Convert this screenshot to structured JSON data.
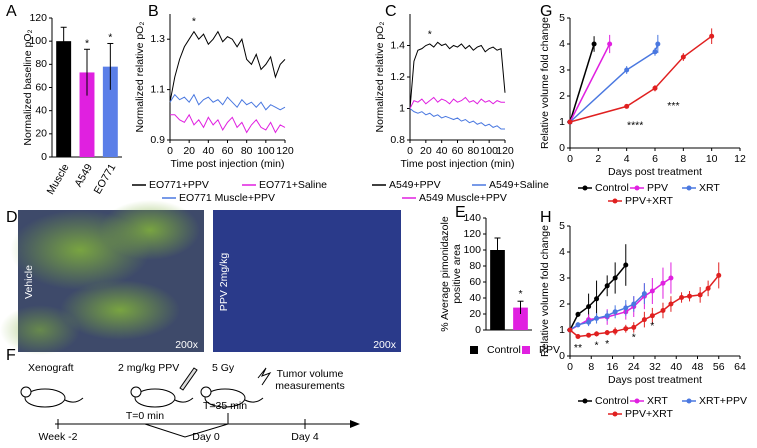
{
  "chart_data": [
    {
      "type": "bar",
      "panel": "A",
      "ylabel": "Normalized baseline pO₂",
      "categories": [
        "Muscle",
        "A549",
        "EO771"
      ],
      "values": [
        100,
        73,
        78
      ],
      "errors": [
        12,
        20,
        20
      ],
      "colors": [
        "#000000",
        "#e020e0",
        "#5b7fe8"
      ],
      "ylim": [
        0,
        120
      ],
      "yticks": [
        0,
        20,
        40,
        60,
        80,
        100,
        120
      ],
      "annotations": [
        {
          "text": "*",
          "index": 1,
          "y": 98
        },
        {
          "text": "*",
          "index": 2,
          "y": 103
        }
      ]
    },
    {
      "type": "line",
      "panel": "B",
      "ylabel": "Normalized relative pO₂",
      "xlabel": "Time post injection (min)",
      "x": [
        0,
        5,
        10,
        15,
        20,
        25,
        30,
        35,
        40,
        45,
        50,
        55,
        60,
        65,
        70,
        75,
        80,
        85,
        90,
        95,
        100,
        105,
        110,
        115,
        120
      ],
      "series": [
        {
          "name": "EO771+PPV",
          "color": "#000000",
          "values": [
            1.05,
            1.15,
            1.22,
            1.27,
            1.3,
            1.33,
            1.3,
            1.32,
            1.28,
            1.3,
            1.33,
            1.29,
            1.31,
            1.3,
            1.27,
            1.3,
            1.22,
            1.2,
            1.24,
            1.18,
            1.2,
            1.23,
            1.15,
            1.2,
            1.22
          ]
        },
        {
          "name": "EO771+Saline",
          "color": "#e020e0",
          "values": [
            1.0,
            1.0,
            0.98,
            0.97,
            1.0,
            0.96,
            0.98,
            0.95,
            0.99,
            0.96,
            0.98,
            0.94,
            0.97,
            0.99,
            0.95,
            0.97,
            0.93,
            0.96,
            0.98,
            0.95,
            0.94,
            0.97,
            0.93,
            0.96,
            0.95
          ]
        },
        {
          "name": "EO771 Muscle+PPV",
          "color": "#4a78e0",
          "values": [
            1.05,
            1.08,
            1.06,
            1.07,
            1.05,
            1.08,
            1.04,
            1.06,
            1.07,
            1.05,
            1.06,
            1.04,
            1.07,
            1.05,
            1.03,
            1.06,
            1.04,
            1.05,
            1.03,
            1.05,
            1.02,
            1.04,
            1.03,
            1.02,
            1.03
          ]
        }
      ],
      "xlim": [
        0,
        120
      ],
      "xticks": [
        0,
        20,
        40,
        60,
        80,
        100,
        120
      ],
      "ylim": [
        0.9,
        1.4
      ],
      "yticks": [
        0.9,
        1.1,
        1.3
      ],
      "annotations": [
        {
          "text": "*",
          "x": 25,
          "y": 1.37
        }
      ]
    },
    {
      "type": "line",
      "panel": "C",
      "ylabel": "Normalized relative pO₂",
      "xlabel": "Time post injection (min)",
      "x": [
        0,
        5,
        10,
        15,
        20,
        25,
        30,
        35,
        40,
        45,
        50,
        55,
        60,
        65,
        70,
        75,
        80,
        85,
        90,
        95,
        100,
        105,
        110,
        115,
        120
      ],
      "series": [
        {
          "name": "A549+PPV",
          "color": "#000000",
          "values": [
            1.0,
            1.3,
            1.37,
            1.38,
            1.4,
            1.41,
            1.39,
            1.42,
            1.4,
            1.41,
            1.38,
            1.4,
            1.39,
            1.41,
            1.38,
            1.4,
            1.37,
            1.39,
            1.4,
            1.36,
            1.38,
            1.39,
            1.37,
            1.38,
            1.1
          ]
        },
        {
          "name": "A549+Saline",
          "color": "#4a78e0",
          "values": [
            1.0,
            0.98,
            0.97,
            0.98,
            0.96,
            0.97,
            0.95,
            0.96,
            0.94,
            0.95,
            0.94,
            0.93,
            0.94,
            0.92,
            0.93,
            0.91,
            0.92,
            0.9,
            0.91,
            0.89,
            0.9,
            0.88,
            0.89,
            0.87,
            0.87
          ]
        },
        {
          "name": "A549 Muscle+PPV",
          "color": "#e020e0",
          "values": [
            1.0,
            1.05,
            1.04,
            1.06,
            1.03,
            1.05,
            1.07,
            1.04,
            1.06,
            1.05,
            1.03,
            1.06,
            1.04,
            1.05,
            1.07,
            1.04,
            1.05,
            1.03,
            1.06,
            1.04,
            1.05,
            1.03,
            1.05,
            1.04,
            1.04
          ]
        }
      ],
      "xlim": [
        0,
        120
      ],
      "xticks": [
        0,
        20,
        40,
        60,
        80,
        100,
        120
      ],
      "ylim": [
        0.8,
        1.6
      ],
      "yticks": [
        0.8,
        1,
        1.2,
        1.4
      ],
      "annotations": [
        {
          "text": "*",
          "x": 25,
          "y": 1.47
        }
      ]
    },
    {
      "type": "bar",
      "panel": "E",
      "ylabel": [
        "% Average pimonidazole",
        "positive area"
      ],
      "series": [
        {
          "name": "Control",
          "color": "#000000",
          "values": [
            100
          ],
          "errors": [
            15
          ]
        },
        {
          "name": "PPV",
          "color": "#e020e0",
          "values": [
            28
          ],
          "errors": [
            8
          ]
        }
      ],
      "ylim": [
        0,
        140
      ],
      "yticks": [
        0,
        20,
        40,
        60,
        80,
        100,
        120,
        140
      ],
      "annotations": [
        {
          "text": "*",
          "index": 1,
          "y": 45
        }
      ]
    },
    {
      "type": "line",
      "panel": "G",
      "ylabel": "Relative volume fold change",
      "xlabel": "Days post treatment",
      "series": [
        {
          "name": "Control",
          "color": "#000000",
          "x": [
            0,
            1.7
          ],
          "values": [
            1,
            4
          ],
          "errors": [
            0,
            0.3
          ]
        },
        {
          "name": "PPV",
          "color": "#e020e0",
          "x": [
            0,
            2.8
          ],
          "values": [
            1,
            4
          ],
          "errors": [
            0,
            0.35
          ]
        },
        {
          "name": "XRT",
          "color": "#4a78e0",
          "x": [
            0,
            4,
            6,
            6.2
          ],
          "values": [
            1,
            3,
            3.7,
            4
          ],
          "errors": [
            0,
            0.15,
            0.15,
            0.35
          ]
        },
        {
          "name": "PPV+XRT",
          "color": "#e02020",
          "x": [
            0,
            4,
            6,
            8,
            10
          ],
          "values": [
            1,
            1.6,
            2.3,
            3.5,
            4.3
          ],
          "errors": [
            0,
            0.08,
            0.12,
            0.15,
            0.3
          ]
        }
      ],
      "xlim": [
        0,
        12
      ],
      "xticks": [
        0,
        2,
        4,
        6,
        8,
        10,
        12
      ],
      "ylim": [
        0,
        5
      ],
      "yticks": [
        0,
        1,
        2,
        3,
        4,
        5
      ],
      "annotations": [
        {
          "text": "****",
          "x": 4.6,
          "y": 0.85
        },
        {
          "text": "***",
          "x": 7.3,
          "y": 1.6
        }
      ]
    },
    {
      "type": "line",
      "panel": "H",
      "ylabel": "Relative volume fold change",
      "xlabel": "Days post treatment",
      "series": [
        {
          "name": "Control",
          "color": "#000000",
          "x": [
            0,
            3,
            7,
            10,
            14,
            17,
            21
          ],
          "values": [
            1,
            1.6,
            1.9,
            2.2,
            2.7,
            3.0,
            3.5
          ],
          "errors": [
            0,
            0.1,
            0.5,
            0.7,
            0.4,
            0.6,
            0.8
          ]
        },
        {
          "name": "XRT",
          "color": "#e020e0",
          "x": [
            0,
            7,
            14,
            21,
            24,
            28,
            31,
            35,
            38
          ],
          "values": [
            1,
            1.4,
            1.5,
            1.7,
            1.9,
            2.3,
            2.5,
            2.8,
            3.0
          ],
          "errors": [
            0,
            0.2,
            0.3,
            0.3,
            0.4,
            0.5,
            0.5,
            0.6,
            0.6
          ]
        },
        {
          "name": "XRT+PPV",
          "color": "#4a78e0",
          "x": [
            0,
            3,
            7,
            10,
            14,
            17,
            21,
            24,
            28
          ],
          "values": [
            1,
            1.2,
            1.3,
            1.45,
            1.55,
            1.7,
            1.85,
            2.0,
            2.4
          ],
          "errors": [
            0,
            0.1,
            0.15,
            0.2,
            0.2,
            0.25,
            0.3,
            0.3,
            0.4
          ]
        },
        {
          "name": "PPV+XRT",
          "color": "#e02020",
          "x": [
            0,
            3,
            7,
            10,
            14,
            17,
            21,
            24,
            28,
            31,
            35,
            38,
            42,
            45,
            49,
            52,
            56
          ],
          "values": [
            1,
            0.75,
            0.8,
            0.85,
            0.9,
            0.95,
            1.05,
            1.1,
            1.4,
            1.55,
            1.75,
            2.0,
            2.25,
            2.3,
            2.35,
            2.6,
            3.1
          ],
          "errors": [
            0,
            0.05,
            0.08,
            0.1,
            0.1,
            0.15,
            0.15,
            0.2,
            0.3,
            0.3,
            0.3,
            0.3,
            0.2,
            0.2,
            0.3,
            0.3,
            0.5
          ]
        }
      ],
      "xlim": [
        0,
        64
      ],
      "xticks": [
        0,
        8,
        16,
        24,
        32,
        40,
        48,
        56,
        64
      ],
      "ylim": [
        0,
        5
      ],
      "yticks": [
        0,
        1,
        2,
        3,
        4,
        5
      ],
      "annotations": [
        {
          "text": "**",
          "x": 3,
          "y": 0.3
        },
        {
          "text": "*",
          "x": 10,
          "y": 0.4
        },
        {
          "text": "*",
          "x": 14,
          "y": 0.45
        },
        {
          "text": "*",
          "x": 24,
          "y": 0.7
        },
        {
          "text": "*",
          "x": 31,
          "y": 1.15
        }
      ]
    }
  ],
  "images": {
    "panel": "D",
    "left_label": "Vehicle",
    "right_label": "PPV 2mg/kg",
    "left_scale": "200x",
    "right_scale": "200x"
  },
  "timeline": {
    "panel": "F",
    "xenograft": "Xenograft",
    "drug": "2 mg/kg PPV",
    "dose": "5 Gy",
    "measure": [
      "Tumor volume",
      "measurements"
    ],
    "t0": "T=0 min",
    "t35": "T=35 min",
    "week": "Week -2",
    "day0": "Day 0",
    "day4": "Day 4"
  }
}
